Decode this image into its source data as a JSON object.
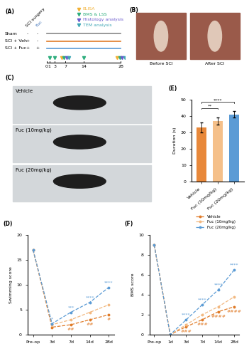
{
  "panel_labels": [
    "(A)",
    "(B)",
    "(C)",
    "(D)",
    "(E)",
    "(F)"
  ],
  "timeline": {
    "columns": [
      "SCI surgery",
      "Fuc"
    ],
    "groups": [
      {
        "name": "Sham",
        "signs": [
          "-",
          "-"
        ]
      },
      {
        "name": "SCI + Veh",
        "signs": [
          "+",
          "-"
        ]
      },
      {
        "name": "SCI + Fuc",
        "signs": [
          "+",
          "+"
        ]
      }
    ],
    "days": [
      0,
      1,
      3,
      7,
      14,
      28
    ],
    "assays": [
      {
        "name": "ELISA",
        "color": "#F2B134",
        "days": [
          7,
          28
        ]
      },
      {
        "name": "BMS & LSS",
        "color": "#2EAE7D",
        "days": [
          1,
          3,
          7,
          14,
          28
        ]
      },
      {
        "name": "Histology analysis",
        "color": "#6A5ACD",
        "days": [
          7,
          28
        ]
      },
      {
        "name": "TEM analysis",
        "color": "#3FA7B5",
        "days": [
          7,
          28
        ]
      }
    ]
  },
  "photos": {
    "surgery": [
      "Before SCI",
      "After SCI"
    ],
    "swimming": [
      "Vehicle",
      "Fuc (10mg/kg)",
      "Fuc (20mg/kg)"
    ]
  },
  "chart_data": [
    {
      "type": "line",
      "ylabel": "Swimming score",
      "categories": [
        "Pre-op",
        "3d",
        "7d",
        "14d",
        "28d"
      ],
      "series": [
        {
          "name": "Vehicle",
          "color": "#E07B28",
          "marker": "o",
          "line_style": "dashed",
          "values": [
            17,
            1.5,
            2,
            3,
            4
          ]
        },
        {
          "name": "Fuc (10mg/kg)",
          "color": "#F2B880",
          "marker": "o",
          "line_style": "dashed",
          "values": [
            17,
            2,
            3,
            4.5,
            6
          ]
        },
        {
          "name": "Fuc (20mg/kg)",
          "color": "#5B9BD5",
          "marker": "o",
          "line_style": "dashed",
          "values": [
            17,
            2.2,
            4.5,
            6.5,
            9.5
          ]
        }
      ],
      "ylim": [
        0,
        20
      ],
      "yticks": [
        0,
        5,
        10,
        15,
        20
      ],
      "annotations_above": [
        {
          "category": "3d",
          "text": "*"
        },
        {
          "category": "7d",
          "text": "***"
        },
        {
          "category": "14d",
          "text": "****"
        },
        {
          "category": "28d",
          "text": "****"
        }
      ],
      "annotations_below": [
        {
          "category": "7d",
          "text": "##"
        },
        {
          "category": "14d",
          "text": "##"
        },
        {
          "category": "28d",
          "text": "#"
        }
      ]
    },
    {
      "type": "bar",
      "ylabel": "Duration (s)",
      "categories": [
        "Vehicle",
        "Fuc (10mg/kg)",
        "Fuc (20mg/kg)"
      ],
      "values": [
        33,
        37,
        41
      ],
      "errors": [
        3,
        2,
        2
      ],
      "colors": [
        "#E8883A",
        "#F5C08A",
        "#5B9BD5"
      ],
      "ylim": [
        0,
        50
      ],
      "yticks": [
        0,
        10,
        20,
        30,
        40,
        50
      ],
      "comparisons": [
        {
          "pair": [
            "Vehicle",
            "Fuc (10mg/kg)"
          ],
          "text": "**"
        },
        {
          "pair": [
            "Vehicle",
            "Fuc (20mg/kg)"
          ],
          "text": "****"
        }
      ]
    },
    {
      "type": "line",
      "ylabel": "BMS score",
      "categories": [
        "Pre-op",
        "1d",
        "3d",
        "7d",
        "14d",
        "28d"
      ],
      "series": [
        {
          "name": "Vehicle",
          "color": "#E07B28",
          "marker": "o",
          "line_style": "dashed",
          "values": [
            9,
            0,
            0.8,
            1.5,
            2.3,
            2.8
          ]
        },
        {
          "name": "Fuc (10mg/kg)",
          "color": "#F2B880",
          "marker": "o",
          "line_style": "dashed",
          "values": [
            9,
            0,
            1,
            2,
            2.8,
            3.8
          ]
        },
        {
          "name": "Fuc (20mg/kg)",
          "color": "#5B9BD5",
          "marker": "o",
          "line_style": "dashed",
          "values": [
            9,
            0,
            1.5,
            3,
            4.5,
            6.5
          ]
        }
      ],
      "ylim": [
        0,
        10
      ],
      "yticks": [
        0,
        2,
        4,
        6,
        8,
        10
      ],
      "legend": "lower right",
      "annotations_above": [
        {
          "category": "3d",
          "text": "****"
        },
        {
          "category": "7d",
          "text": "****"
        },
        {
          "category": "14d",
          "text": "****"
        },
        {
          "category": "28d",
          "text": "****"
        }
      ],
      "annotations_below": [
        {
          "category": "3d",
          "text": "###"
        },
        {
          "category": "7d",
          "text": "###"
        },
        {
          "category": "14d",
          "text": "####"
        },
        {
          "category": "28d",
          "text": "####"
        }
      ]
    }
  ]
}
